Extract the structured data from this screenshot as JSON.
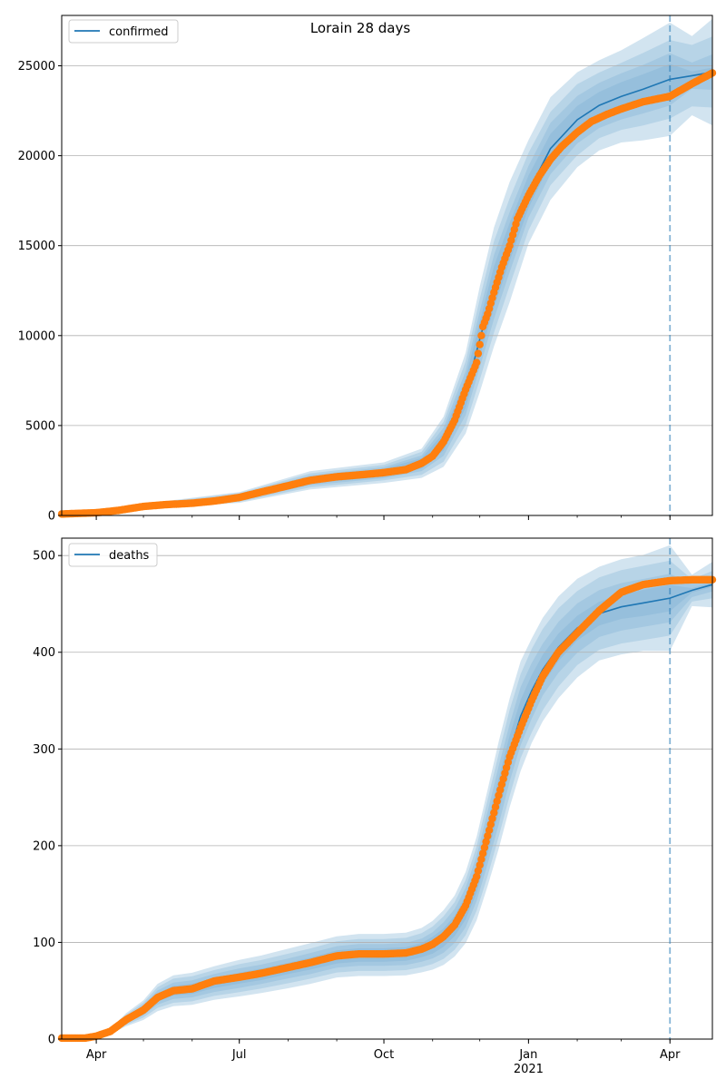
{
  "figure": {
    "title": "Lorain 28 days"
  },
  "colors": {
    "model": "#1f77b4",
    "observed": "#ff7f0e",
    "band": "#1f77b4",
    "grid": "#b0b0b0",
    "cutoff": "#1f77b4"
  },
  "x_axis": {
    "start": "2020-03-10",
    "end": "2021-04-28",
    "major_ticks": [
      {
        "date": "2020-04-01",
        "label": "Apr"
      },
      {
        "date": "2020-07-01",
        "label": "Jul"
      },
      {
        "date": "2020-10-01",
        "label": "Oct"
      },
      {
        "date": "2021-01-01",
        "label": "Jan"
      },
      {
        "date": "2021-04-01",
        "label": "Apr"
      }
    ],
    "year_label": "2021",
    "cutoff_date": "2021-04-01"
  },
  "chart_data": [
    {
      "type": "line",
      "legend": "confirmed",
      "legend_position": "top-left",
      "ylim": [
        0,
        27800
      ],
      "yticks": [
        0,
        5000,
        10000,
        15000,
        20000,
        25000
      ],
      "grid": "horizontal",
      "observed": {
        "dates": [
          "2020-03-10",
          "2020-04-01",
          "2020-04-15",
          "2020-05-01",
          "2020-05-15",
          "2020-06-01",
          "2020-06-15",
          "2020-07-01",
          "2020-07-15",
          "2020-08-01",
          "2020-08-15",
          "2020-09-01",
          "2020-09-15",
          "2020-10-01",
          "2020-10-15",
          "2020-10-25",
          "2020-11-01",
          "2020-11-08",
          "2020-11-15",
          "2020-11-22",
          "2020-11-29",
          "2020-12-03",
          "2020-12-06",
          "2020-12-10",
          "2020-12-15",
          "2020-12-20",
          "2020-12-25",
          "2021-01-01",
          "2021-01-08",
          "2021-01-15",
          "2021-01-22",
          "2021-02-01",
          "2021-02-10",
          "2021-02-20",
          "2021-03-01",
          "2021-03-15",
          "2021-04-01",
          "2021-04-15",
          "2021-04-28"
        ],
        "values": [
          80,
          150,
          280,
          500,
          600,
          680,
          800,
          1000,
          1300,
          1650,
          1950,
          2150,
          2250,
          2380,
          2550,
          2900,
          3300,
          4100,
          5300,
          7000,
          8500,
          10500,
          11200,
          12400,
          13800,
          15000,
          16500,
          17800,
          18900,
          19800,
          20500,
          21300,
          21900,
          22300,
          22600,
          23000,
          23300,
          24000,
          24600
        ]
      },
      "model": {
        "dates": [
          "2020-03-10",
          "2020-05-01",
          "2020-07-01",
          "2020-08-15",
          "2020-10-01",
          "2020-10-25",
          "2020-11-08",
          "2020-11-22",
          "2020-12-01",
          "2020-12-10",
          "2020-12-20",
          "2021-01-01",
          "2021-01-15",
          "2021-02-01",
          "2021-02-15",
          "2021-03-01",
          "2021-03-15",
          "2021-04-01",
          "2021-04-15",
          "2021-04-28"
        ],
        "values": [
          80,
          500,
          1000,
          1950,
          2380,
          2900,
          4100,
          6800,
          9800,
          12700,
          15200,
          18000,
          20400,
          22000,
          22800,
          23300,
          23700,
          24250,
          24450,
          24650
        ],
        "band_widths": [
          [
            0.1,
            0.16,
            0.24,
            0.3
          ],
          [
            0.1,
            0.16,
            0.24,
            0.3
          ],
          [
            0.1,
            0.16,
            0.24,
            0.3
          ],
          [
            0.09,
            0.14,
            0.2,
            0.26
          ],
          [
            0.09,
            0.13,
            0.18,
            0.24
          ],
          [
            0.1,
            0.15,
            0.22,
            0.28
          ],
          [
            0.12,
            0.19,
            0.27,
            0.34
          ],
          [
            0.12,
            0.18,
            0.26,
            0.33
          ],
          [
            0.1,
            0.16,
            0.23,
            0.3
          ],
          [
            0.09,
            0.14,
            0.2,
            0.26
          ],
          [
            0.07,
            0.11,
            0.16,
            0.22
          ],
          [
            0.05,
            0.08,
            0.12,
            0.16
          ],
          [
            0.04,
            0.07,
            0.1,
            0.14
          ],
          [
            0.035,
            0.06,
            0.09,
            0.12
          ],
          [
            0.033,
            0.055,
            0.08,
            0.11
          ],
          [
            0.034,
            0.055,
            0.08,
            0.11
          ],
          [
            0.035,
            0.057,
            0.085,
            0.12
          ],
          [
            0.035,
            0.06,
            0.09,
            0.13
          ],
          [
            0.01,
            0.03,
            0.07,
            0.09
          ],
          [
            0.01,
            0.04,
            0.08,
            0.12
          ]
        ]
      }
    },
    {
      "type": "line",
      "legend": "deaths",
      "legend_position": "top-left",
      "ylim": [
        0,
        518
      ],
      "yticks": [
        0,
        100,
        200,
        300,
        400,
        500
      ],
      "grid": "horizontal",
      "observed": {
        "dates": [
          "2020-03-10",
          "2020-03-25",
          "2020-04-01",
          "2020-04-10",
          "2020-04-20",
          "2020-05-01",
          "2020-05-10",
          "2020-05-20",
          "2020-06-01",
          "2020-06-15",
          "2020-07-01",
          "2020-07-15",
          "2020-08-01",
          "2020-08-15",
          "2020-09-01",
          "2020-09-15",
          "2020-10-01",
          "2020-10-15",
          "2020-10-25",
          "2020-11-01",
          "2020-11-08",
          "2020-11-15",
          "2020-11-22",
          "2020-11-29",
          "2020-12-06",
          "2020-12-13",
          "2020-12-20",
          "2020-12-27",
          "2021-01-03",
          "2021-01-10",
          "2021-01-20",
          "2021-02-01",
          "2021-02-15",
          "2021-03-01",
          "2021-03-15",
          "2021-04-01",
          "2021-04-15",
          "2021-04-28"
        ],
        "values": [
          1,
          1,
          3,
          8,
          20,
          30,
          43,
          50,
          52,
          60,
          64,
          68,
          74,
          79,
          86,
          88,
          88,
          89,
          93,
          98,
          106,
          118,
          138,
          168,
          210,
          252,
          292,
          322,
          350,
          375,
          400,
          420,
          443,
          462,
          470,
          474,
          475,
          475
        ]
      },
      "model": {
        "dates": [
          "2020-03-10",
          "2020-03-25",
          "2020-04-01",
          "2020-04-10",
          "2020-04-20",
          "2020-05-01",
          "2020-05-10",
          "2020-05-20",
          "2020-06-01",
          "2020-06-15",
          "2020-07-01",
          "2020-07-15",
          "2020-08-01",
          "2020-08-15",
          "2020-09-01",
          "2020-09-15",
          "2020-10-01",
          "2020-10-15",
          "2020-10-25",
          "2020-11-01",
          "2020-11-08",
          "2020-11-15",
          "2020-11-22",
          "2020-11-29",
          "2020-12-06",
          "2020-12-13",
          "2020-12-20",
          "2020-12-27",
          "2021-01-03",
          "2021-01-10",
          "2021-01-20",
          "2021-02-01",
          "2021-02-15",
          "2021-03-01",
          "2021-03-15",
          "2021-04-01",
          "2021-04-15",
          "2021-04-28"
        ],
        "values": [
          1,
          1,
          3,
          8,
          20,
          30,
          43,
          50,
          52,
          58,
          63,
          67,
          73,
          78,
          85,
          87,
          87,
          88,
          92,
          97,
          105,
          117,
          136,
          166,
          208,
          252,
          296,
          334,
          360,
          382,
          405,
          425,
          440,
          447,
          451,
          456,
          464,
          470
        ],
        "band_widths": [
          [
            0.1,
            0.18,
            0.26,
            0.34
          ],
          [
            0.1,
            0.18,
            0.26,
            0.34
          ],
          [
            0.1,
            0.18,
            0.26,
            0.34
          ],
          [
            0.1,
            0.18,
            0.26,
            0.34
          ],
          [
            0.1,
            0.18,
            0.26,
            0.34
          ],
          [
            0.1,
            0.18,
            0.26,
            0.34
          ],
          [
            0.1,
            0.17,
            0.25,
            0.33
          ],
          [
            0.1,
            0.17,
            0.25,
            0.32
          ],
          [
            0.1,
            0.17,
            0.25,
            0.32
          ],
          [
            0.09,
            0.16,
            0.23,
            0.3
          ],
          [
            0.09,
            0.16,
            0.23,
            0.3
          ],
          [
            0.09,
            0.15,
            0.22,
            0.29
          ],
          [
            0.08,
            0.14,
            0.21,
            0.28
          ],
          [
            0.08,
            0.14,
            0.2,
            0.27
          ],
          [
            0.08,
            0.13,
            0.19,
            0.25
          ],
          [
            0.08,
            0.13,
            0.19,
            0.25
          ],
          [
            0.08,
            0.13,
            0.19,
            0.25
          ],
          [
            0.08,
            0.13,
            0.19,
            0.25
          ],
          [
            0.08,
            0.13,
            0.19,
            0.25
          ],
          [
            0.09,
            0.14,
            0.2,
            0.26
          ],
          [
            0.09,
            0.15,
            0.21,
            0.27
          ],
          [
            0.09,
            0.15,
            0.21,
            0.27
          ],
          [
            0.09,
            0.15,
            0.21,
            0.27
          ],
          [
            0.09,
            0.14,
            0.2,
            0.26
          ],
          [
            0.08,
            0.13,
            0.19,
            0.24
          ],
          [
            0.07,
            0.12,
            0.17,
            0.22
          ],
          [
            0.06,
            0.1,
            0.15,
            0.19
          ],
          [
            0.05,
            0.09,
            0.13,
            0.17
          ],
          [
            0.045,
            0.08,
            0.12,
            0.15
          ],
          [
            0.04,
            0.07,
            0.11,
            0.14
          ],
          [
            0.035,
            0.065,
            0.1,
            0.13
          ],
          [
            0.03,
            0.06,
            0.09,
            0.12
          ],
          [
            0.028,
            0.055,
            0.085,
            0.11
          ],
          [
            0.028,
            0.055,
            0.085,
            0.11
          ],
          [
            0.03,
            0.055,
            0.085,
            0.11
          ],
          [
            0.03,
            0.055,
            0.085,
            0.12
          ],
          [
            0.005,
            0.015,
            0.025,
            0.035
          ],
          [
            0.005,
            0.015,
            0.03,
            0.05
          ]
        ]
      }
    }
  ]
}
